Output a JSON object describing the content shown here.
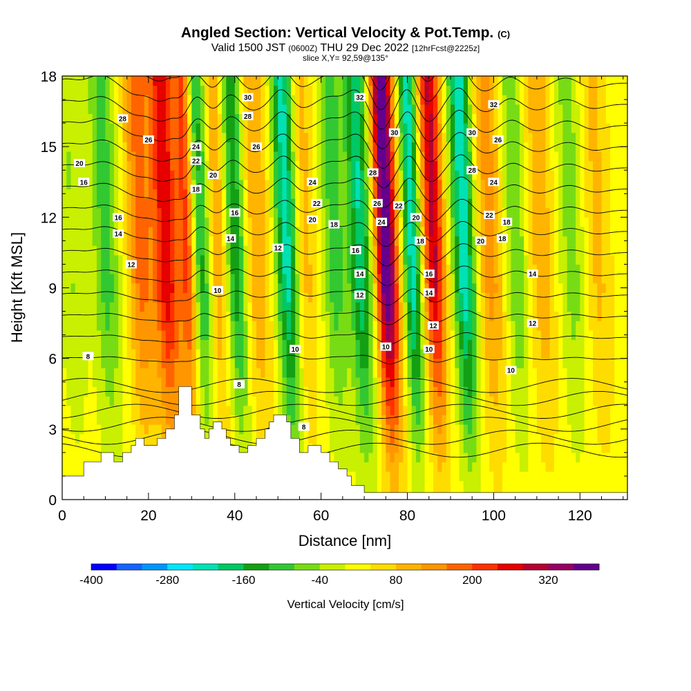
{
  "header": {
    "title": "Angled Section: Vertical Velocity & Pot.Temp.",
    "title_units": "(C)",
    "valid_prefix": "Valid 1500 JST",
    "valid_utc": "(0600Z)",
    "valid_date": "THU 29 Dec 2022",
    "forecast": "[12hrFcst@2225z]",
    "slice": "slice X,Y= 92,59@135°"
  },
  "chart_data": {
    "type": "heatmap",
    "xlabel": "Distance [nm]",
    "ylabel": "Height [Kft MSL]",
    "xlim": [
      0,
      131
    ],
    "ylim": [
      0,
      18
    ],
    "x_ticks": [
      "0",
      "20",
      "40",
      "60",
      "80",
      "100",
      "120"
    ],
    "y_ticks": [
      "0",
      "3",
      "6",
      "9",
      "12",
      "15",
      "18"
    ],
    "x_tick_values": [
      0,
      20,
      40,
      60,
      80,
      100,
      120
    ],
    "y_tick_values": [
      0,
      3,
      6,
      9,
      12,
      15,
      18
    ],
    "colorbar": {
      "label": "Vertical Velocity [cm/s]",
      "min": -400,
      "max": 400,
      "step": 40,
      "tick_labels": [
        "-400",
        "-280",
        "-160",
        "-40",
        "80",
        "200",
        "320"
      ],
      "tick_values": [
        -400,
        -280,
        -160,
        -40,
        80,
        200,
        320
      ],
      "colors": [
        "#0000ff",
        "#1464ff",
        "#0096ff",
        "#00e6ff",
        "#00e1b4",
        "#00c864",
        "#14a014",
        "#32c832",
        "#78dc14",
        "#c8f000",
        "#ffff00",
        "#ffdc00",
        "#ffb400",
        "#ff9600",
        "#ff6400",
        "#ff3200",
        "#e60000",
        "#b40032",
        "#960064",
        "#64008c"
      ]
    },
    "vertical_velocity_peaks": [
      {
        "x": 4,
        "w": -60,
        "width": 3
      },
      {
        "x": 12,
        "w": -120,
        "width": 3
      },
      {
        "x": 20,
        "w": 150,
        "width": 3
      },
      {
        "x": 26,
        "w": 250,
        "width": 3
      },
      {
        "x": 31,
        "w": 200,
        "width": 2
      },
      {
        "x": 34,
        "w": -170,
        "width": 2.5
      },
      {
        "x": 38,
        "w": 120,
        "width": 2.5
      },
      {
        "x": 42,
        "w": -180,
        "width": 2.5
      },
      {
        "x": 47,
        "w": 100,
        "width": 3
      },
      {
        "x": 54,
        "w": -250,
        "width": 2.5
      },
      {
        "x": 58,
        "w": 80,
        "width": 3
      },
      {
        "x": 65,
        "w": -120,
        "width": 3
      },
      {
        "x": 71,
        "w": -220,
        "width": 2.5
      },
      {
        "x": 77,
        "w": 390,
        "width": 2.5
      },
      {
        "x": 83,
        "w": -250,
        "width": 2
      },
      {
        "x": 88,
        "w": 270,
        "width": 2.5
      },
      {
        "x": 95,
        "w": -260,
        "width": 2.5
      },
      {
        "x": 101,
        "w": 120,
        "width": 3
      },
      {
        "x": 107,
        "w": -100,
        "width": 2.5
      },
      {
        "x": 113,
        "w": 90,
        "width": 3
      },
      {
        "x": 120,
        "w": -80,
        "width": 3
      },
      {
        "x": 126,
        "w": 70,
        "width": 3
      }
    ],
    "terrain": [
      [
        0,
        1
      ],
      [
        5,
        1
      ],
      [
        5,
        1.6
      ],
      [
        9,
        1.6
      ],
      [
        9,
        2
      ],
      [
        12,
        2
      ],
      [
        12,
        1.6
      ],
      [
        14,
        1.6
      ],
      [
        14,
        2
      ],
      [
        16,
        2
      ],
      [
        16,
        2.3
      ],
      [
        17,
        2.3
      ],
      [
        17,
        2.6
      ],
      [
        19,
        2.6
      ],
      [
        19,
        2.3
      ],
      [
        22,
        2.3
      ],
      [
        22,
        2.6
      ],
      [
        24,
        2.6
      ],
      [
        24,
        3
      ],
      [
        26,
        3
      ],
      [
        26,
        3.6
      ],
      [
        27,
        3.6
      ],
      [
        27,
        4.8
      ],
      [
        30,
        4.8
      ],
      [
        30,
        3.6
      ],
      [
        32,
        3.6
      ],
      [
        32,
        3
      ],
      [
        33,
        3
      ],
      [
        33,
        2.6
      ],
      [
        34,
        2.6
      ],
      [
        34,
        3
      ],
      [
        35,
        3
      ],
      [
        35,
        3.3
      ],
      [
        37,
        3.3
      ],
      [
        37,
        3
      ],
      [
        38,
        3
      ],
      [
        38,
        2.6
      ],
      [
        39,
        2.6
      ],
      [
        39,
        2.3
      ],
      [
        41,
        2.3
      ],
      [
        41,
        2
      ],
      [
        43,
        2
      ],
      [
        43,
        2.3
      ],
      [
        45,
        2.3
      ],
      [
        45,
        2.6
      ],
      [
        47,
        2.6
      ],
      [
        47,
        3
      ],
      [
        48,
        3
      ],
      [
        48,
        3.3
      ],
      [
        49,
        3.3
      ],
      [
        49,
        3.6
      ],
      [
        52,
        3.6
      ],
      [
        52,
        3.3
      ],
      [
        53,
        3.3
      ],
      [
        53,
        2.6
      ],
      [
        55,
        2.6
      ],
      [
        55,
        2
      ],
      [
        57,
        2
      ],
      [
        57,
        2.3
      ],
      [
        60,
        2.3
      ],
      [
        60,
        2
      ],
      [
        62,
        2
      ],
      [
        62,
        1.6
      ],
      [
        64,
        1.6
      ],
      [
        64,
        1.3
      ],
      [
        66,
        1.3
      ],
      [
        66,
        1
      ],
      [
        67,
        1
      ],
      [
        67,
        0.6
      ],
      [
        70,
        0.6
      ],
      [
        70,
        0.3
      ],
      [
        131,
        0.3
      ],
      [
        131,
        0
      ]
    ],
    "theta_levels": [
      8,
      10,
      12,
      14,
      16,
      18,
      20,
      22,
      24,
      26,
      28,
      30,
      32
    ],
    "theta_labels": [
      {
        "x": 6,
        "y": 6.1,
        "label": "8"
      },
      {
        "x": 41,
        "y": 4.9,
        "label": "8"
      },
      {
        "x": 56,
        "y": 3.1,
        "label": "8"
      },
      {
        "x": 36,
        "y": 8.9,
        "label": "10"
      },
      {
        "x": 54,
        "y": 6.4,
        "label": "10"
      },
      {
        "x": 75,
        "y": 6.5,
        "label": "10"
      },
      {
        "x": 85,
        "y": 6.4,
        "label": "10"
      },
      {
        "x": 104,
        "y": 5.5,
        "label": "10"
      },
      {
        "x": 16,
        "y": 10.0,
        "label": "12"
      },
      {
        "x": 50,
        "y": 10.7,
        "label": "12"
      },
      {
        "x": 69,
        "y": 8.7,
        "label": "12"
      },
      {
        "x": 86,
        "y": 7.4,
        "label": "12"
      },
      {
        "x": 109,
        "y": 7.5,
        "label": "12"
      },
      {
        "x": 13,
        "y": 11.3,
        "label": "14"
      },
      {
        "x": 39,
        "y": 11.1,
        "label": "14"
      },
      {
        "x": 69,
        "y": 9.6,
        "label": "14"
      },
      {
        "x": 85,
        "y": 8.8,
        "label": "14"
      },
      {
        "x": 109,
        "y": 9.6,
        "label": "14"
      },
      {
        "x": 5,
        "y": 13.5,
        "label": "16"
      },
      {
        "x": 13,
        "y": 12.0,
        "label": "16"
      },
      {
        "x": 40,
        "y": 12.2,
        "label": "16"
      },
      {
        "x": 68,
        "y": 10.6,
        "label": "16"
      },
      {
        "x": 85,
        "y": 9.6,
        "label": "16"
      },
      {
        "x": 31,
        "y": 13.2,
        "label": "18"
      },
      {
        "x": 63,
        "y": 11.7,
        "label": "18"
      },
      {
        "x": 83,
        "y": 11.0,
        "label": "18"
      },
      {
        "x": 102,
        "y": 11.1,
        "label": "18"
      },
      {
        "x": 103,
        "y": 11.8,
        "label": "18"
      },
      {
        "x": 4,
        "y": 14.3,
        "label": "20"
      },
      {
        "x": 35,
        "y": 13.8,
        "label": "20"
      },
      {
        "x": 58,
        "y": 11.9,
        "label": "20"
      },
      {
        "x": 82,
        "y": 12.0,
        "label": "20"
      },
      {
        "x": 97,
        "y": 11.0,
        "label": "20"
      },
      {
        "x": 31,
        "y": 14.4,
        "label": "22"
      },
      {
        "x": 59,
        "y": 12.6,
        "label": "22"
      },
      {
        "x": 78,
        "y": 12.5,
        "label": "22"
      },
      {
        "x": 99,
        "y": 12.1,
        "label": "22"
      },
      {
        "x": 31,
        "y": 15.0,
        "label": "24"
      },
      {
        "x": 58,
        "y": 13.5,
        "label": "24"
      },
      {
        "x": 74,
        "y": 11.8,
        "label": "24"
      },
      {
        "x": 100,
        "y": 13.5,
        "label": "24"
      },
      {
        "x": 20,
        "y": 15.3,
        "label": "26"
      },
      {
        "x": 45,
        "y": 15.0,
        "label": "26"
      },
      {
        "x": 73,
        "y": 12.6,
        "label": "26"
      },
      {
        "x": 101,
        "y": 15.3,
        "label": "26"
      },
      {
        "x": 14,
        "y": 16.2,
        "label": "28"
      },
      {
        "x": 43,
        "y": 16.3,
        "label": "28"
      },
      {
        "x": 72,
        "y": 13.9,
        "label": "28"
      },
      {
        "x": 95,
        "y": 14.0,
        "label": "28"
      },
      {
        "x": 43,
        "y": 17.1,
        "label": "30"
      },
      {
        "x": 77,
        "y": 15.6,
        "label": "30"
      },
      {
        "x": 95,
        "y": 15.6,
        "label": "30"
      },
      {
        "x": 69,
        "y": 17.1,
        "label": "32"
      },
      {
        "x": 100,
        "y": 16.8,
        "label": "32"
      }
    ]
  }
}
